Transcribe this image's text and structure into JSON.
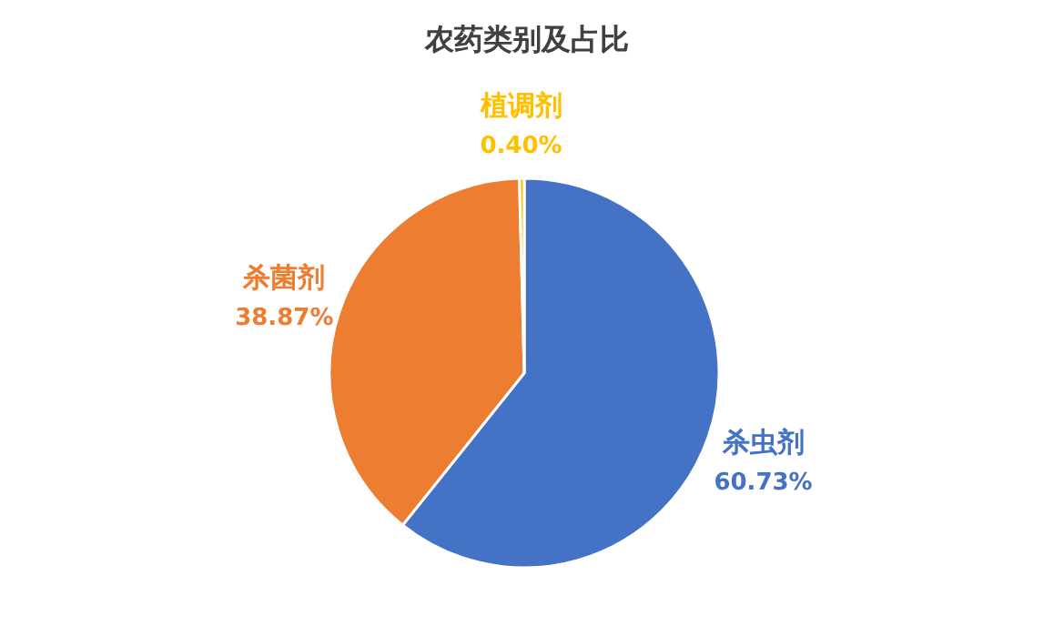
{
  "chart_data": {
    "type": "pie",
    "title": "农药类别及占比",
    "categories": [
      "杀虫剂",
      "杀菌剂",
      "植调剂"
    ],
    "values": [
      60.73,
      38.87,
      0.4
    ],
    "value_labels": [
      "60.73%",
      "38.87%",
      "0.40%"
    ],
    "colors": [
      "#4472c4",
      "#ed7d31",
      "#ffc000"
    ],
    "legend": false
  }
}
